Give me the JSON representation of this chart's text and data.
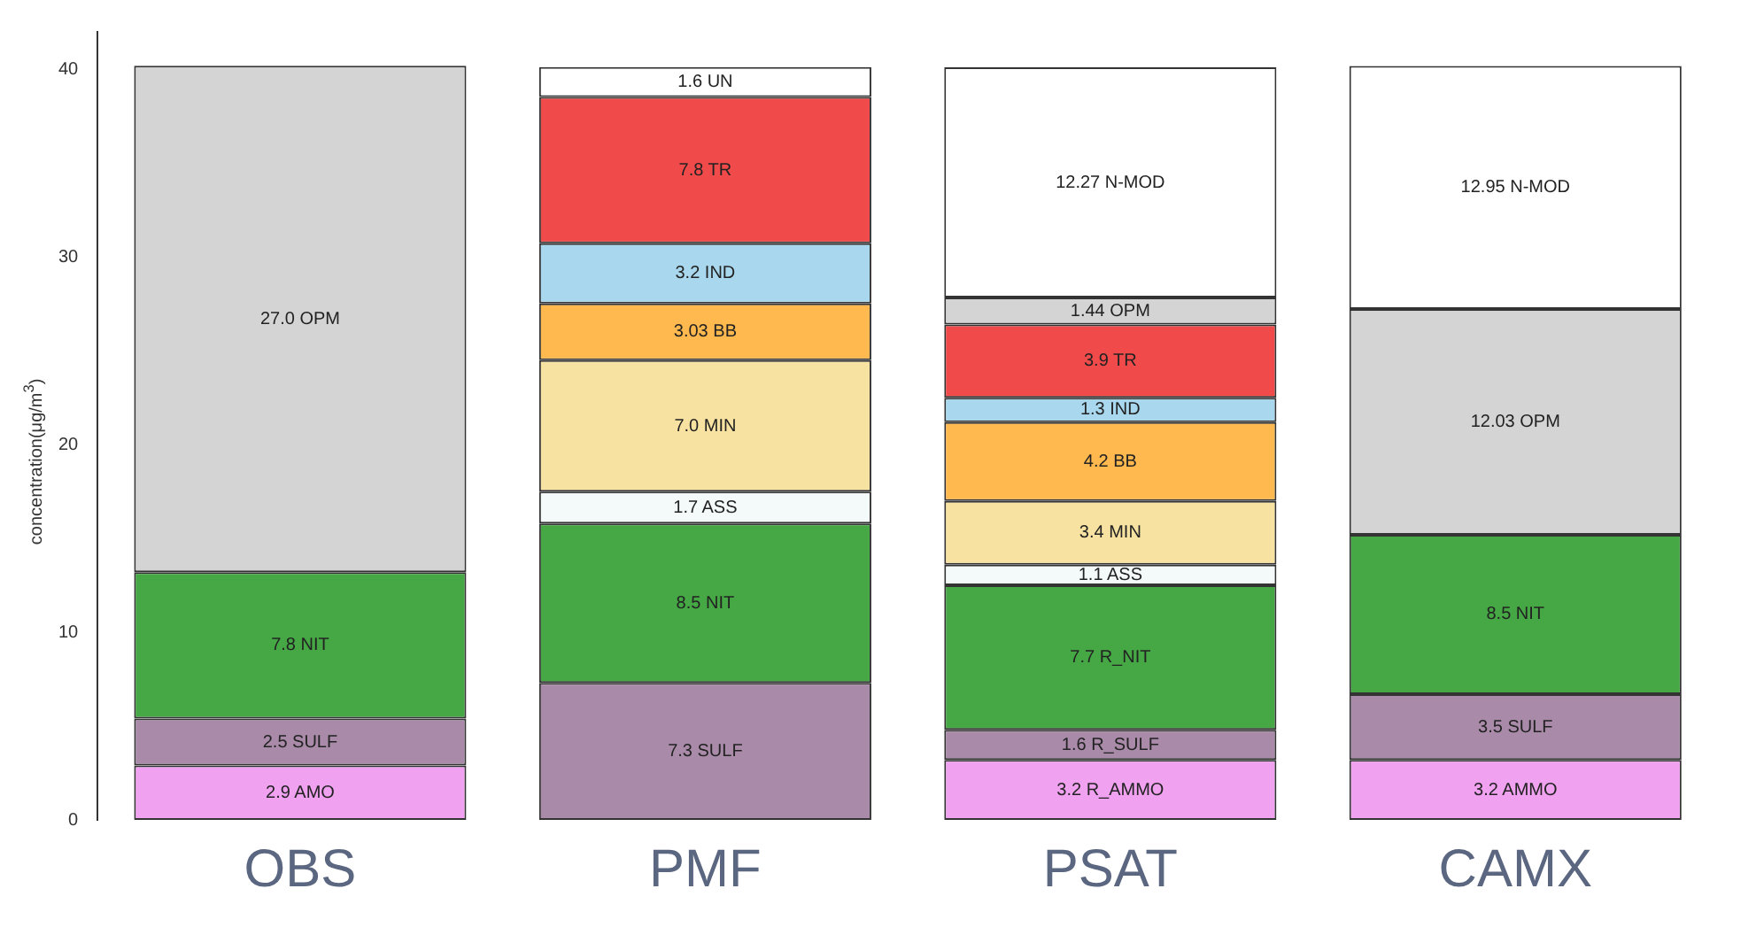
{
  "chart_data": {
    "type": "bar",
    "stacked": true,
    "categories": [
      "OBS",
      "PMF",
      "PSAT",
      "CAMX"
    ],
    "ylabel": "concentration(μg/m$^{3}$)",
    "ylim": [
      0,
      42
    ],
    "yticks": [
      0,
      10,
      20,
      30,
      40
    ],
    "grid": false,
    "legend": false,
    "series": [
      {
        "color": "#f0a2f0",
        "values": [
          2.9,
          null,
          3.2,
          3.2
        ],
        "value_labels": [
          "2.9 AMO",
          null,
          "3.2 R_AMMO",
          "3.2 AMMO"
        ]
      },
      {
        "color": "#a98ba9",
        "values": [
          2.5,
          7.3,
          1.6,
          3.5
        ],
        "value_labels": [
          "2.5 SULF",
          "7.3 SULF",
          "1.6 R_SULF",
          "3.5 SULF"
        ]
      },
      {
        "color": "#45a845",
        "values": [
          7.8,
          8.5,
          7.7,
          8.5
        ],
        "value_labels": [
          "7.8 NIT",
          "8.5 NIT",
          "7.7 R_NIT",
          "8.5 NIT"
        ]
      },
      {
        "color": "#f4fafa",
        "values": [
          null,
          1.7,
          1.1,
          null
        ],
        "value_labels": [
          null,
          "1.7 ASS",
          "1.1 ASS",
          null
        ]
      },
      {
        "color": "#f8e2a2",
        "values": [
          null,
          7.0,
          3.4,
          null
        ],
        "value_labels": [
          null,
          "7.0 MIN",
          "3.4 MIN",
          null
        ]
      },
      {
        "color": "#ffb94f",
        "values": [
          null,
          3.03,
          4.2,
          null
        ],
        "value_labels": [
          null,
          "3.03 BB",
          "4.2 BB",
          null
        ]
      },
      {
        "color": "#a9d8ee",
        "values": [
          null,
          3.2,
          1.3,
          null
        ],
        "value_labels": [
          null,
          "3.2 IND",
          "1.3 IND",
          null
        ]
      },
      {
        "color": "#f04a4a",
        "values": [
          null,
          7.8,
          3.9,
          null
        ],
        "value_labels": [
          null,
          "7.8 TR",
          "3.9 TR",
          null
        ]
      },
      {
        "color": "#d4d4d4",
        "values": [
          27.0,
          null,
          1.44,
          12.03
        ],
        "value_labels": [
          "27.0 OPM",
          null,
          "1.44 OPM",
          "12.03 OPM"
        ]
      },
      {
        "color": "#ffffff",
        "values": [
          null,
          1.6,
          12.27,
          12.95
        ],
        "value_labels": [
          null,
          "1.6 UN",
          "12.27 N-MOD",
          "12.95 N-MOD"
        ]
      }
    ]
  }
}
